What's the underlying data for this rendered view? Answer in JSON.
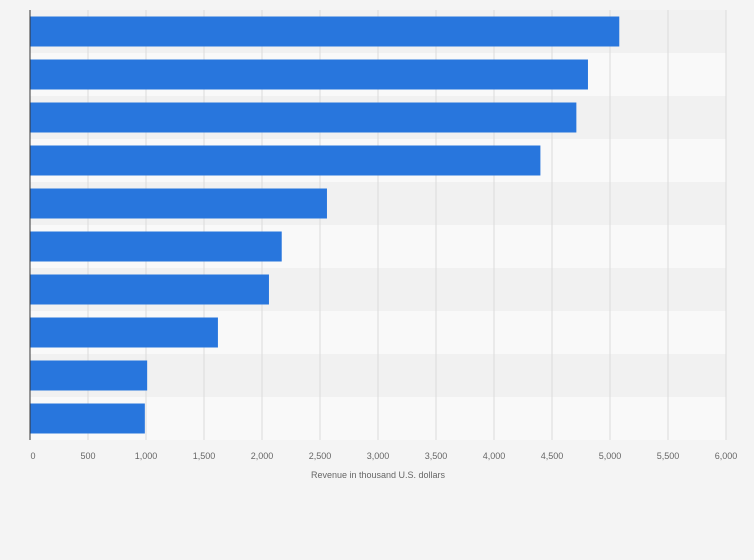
{
  "chart_data": {
    "type": "bar",
    "orientation": "horizontal",
    "title": "",
    "xlabel": "Revenue in thousand U.S. dollars",
    "ylabel": "",
    "categories": [
      "",
      "",
      "",
      "",
      "",
      "",
      "",
      "",
      "",
      ""
    ],
    "values": [
      5080,
      4810,
      4710,
      4400,
      2560,
      2170,
      2060,
      1620,
      1010,
      990
    ],
    "xlim": [
      0,
      6000
    ],
    "xticks": [
      0,
      500,
      1000,
      1500,
      2000,
      2500,
      3000,
      3500,
      4000,
      4500,
      5000,
      5500,
      6000
    ],
    "xtick_labels": [
      "0",
      "500",
      "1,000",
      "1,500",
      "2,000",
      "2,500",
      "3,000",
      "3,500",
      "4,000",
      "4,500",
      "5,000",
      "5,500",
      "6,000"
    ],
    "grid": true,
    "bar_color": "#2876dd"
  }
}
